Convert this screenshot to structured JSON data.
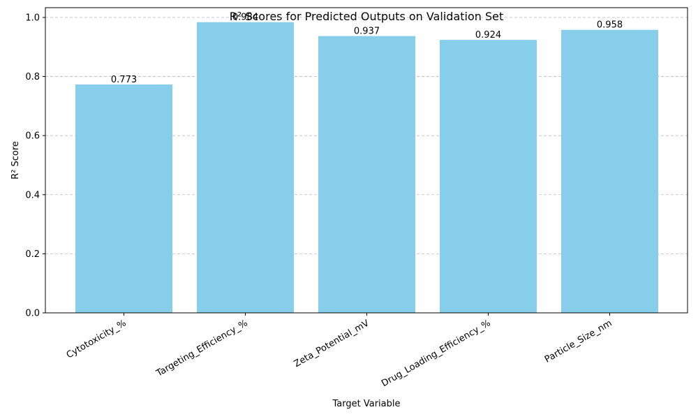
{
  "chart_data": {
    "type": "bar",
    "title": "R² Scores for Predicted Outputs on Validation Set",
    "xlabel": "Target Variable",
    "ylabel": "R² Score",
    "categories": [
      "Cytotoxicity_%",
      "Targeting_Efficiency_%",
      "Zeta_Potential_mV",
      "Drug_Loading_Efficiency_%",
      "Particle_Size_nm"
    ],
    "values": [
      0.773,
      0.984,
      0.937,
      0.924,
      0.958
    ],
    "value_labels": [
      "0.773",
      "0.984",
      "0.937",
      "0.924",
      "0.958"
    ],
    "ylim": [
      0,
      1.033
    ],
    "yticks": [
      0.0,
      0.2,
      0.4,
      0.6,
      0.8,
      1.0
    ],
    "ytick_labels": [
      "0.0",
      "0.2",
      "0.4",
      "0.6",
      "0.8",
      "1.0"
    ],
    "grid": "y-dashed",
    "bar_color": "#87CEEB"
  }
}
